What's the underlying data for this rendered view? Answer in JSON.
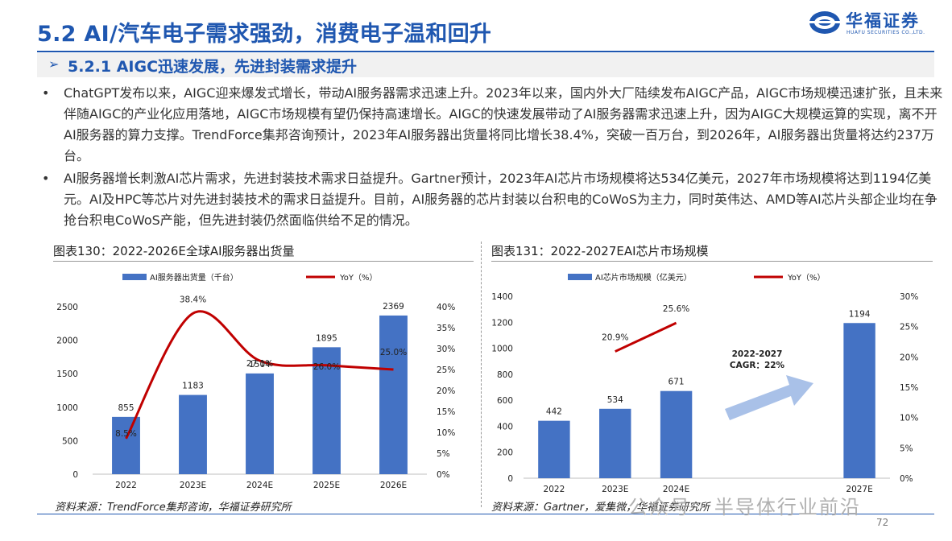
{
  "header": {
    "title": "5.2 AI/汽车电子需求强劲，消费电子温和回升",
    "logo_cn": "华福证券",
    "logo_en": "HUAFU SECURITIES CO.,LTD."
  },
  "section": {
    "arrow": "➢",
    "title": "5.2.1 AIGC迅速发展，先进封装需求提升"
  },
  "bullets": [
    {
      "mark": "•",
      "text": "ChatGPT发布以来，AIGC迎来爆发式增长，带动AI服务器需求迅速上升。2023年以来，国内外大厂陆续发布AIGC产品，AIGC市场规模迅速扩张，且未来伴随AIGC的产业化应用落地，AIGC市场规模有望仍保持高速增长。AIGC的快速发展带动了AI服务器需求迅速上升，因为AIGC大规模运算的实现，离不开AI服务器的算力支撑。TrendForce集邦咨询预计，2023年AI服务器出货量将同比增长38.4%，突破一百万台，到2026年，AI服务器出货量将达约237万台。"
    },
    {
      "mark": "•",
      "text": "AI服务器增长刺激AI芯片需求，先进封装技术需求日益提升。Gartner预计，2023年AI芯片市场规模将达534亿美元，2027年市场规模将达到1194亿美元。AI及HPC等芯片对先进封装技术的需求日益提升。目前，AI服务器的芯片封装以台积电的CoWoS为主力，同时英伟达、AMD等AI芯片头部企业均在争抢台积电CoWoS产能，但先进封装仍然面临供给不足的情况。"
    }
  ],
  "figure_left": {
    "title": "图表130：2022-2026E全球AI服务器出货量",
    "source": "资料来源：TrendForce集邦咨询，华福证券研究所"
  },
  "figure_right": {
    "title": "图表131：2022-2027EAI芯片市场规模",
    "source": "资料来源：Gartner，爱集微，华福证券研究所",
    "annotation_line1": "2022-2027",
    "annotation_line2": "CAGR：22%"
  },
  "footer": {
    "page": "72",
    "watermark": "公众号 · 半导体行业前沿"
  },
  "colors": {
    "brand_blue": "#1f57b0",
    "bar_blue": "#4472c4",
    "line_red": "#c00000",
    "arrow_light_blue": "#a9c1e8"
  },
  "chart_data": [
    {
      "type": "bar",
      "categories": [
        "2022",
        "2023E",
        "2024E",
        "2025E",
        "2026E"
      ],
      "series": [
        {
          "name": "AI服务器出货量（千台）",
          "type": "bar",
          "axis": "left",
          "values": [
            855,
            1183,
            1504,
            1895,
            2369
          ]
        },
        {
          "name": "YoY（%）",
          "type": "line",
          "axis": "right",
          "values": [
            8.5,
            38.4,
            27.1,
            26.0,
            25.0
          ]
        }
      ],
      "bar_labels": [
        "855",
        "1183",
        "1504",
        "1895",
        "2369"
      ],
      "line_labels": [
        "8.5%",
        "38.4%",
        "27.1%",
        "26.0%",
        "25.0%"
      ],
      "left_ticks": [
        "0",
        "500",
        "1000",
        "1500",
        "2000",
        "2500"
      ],
      "right_ticks": [
        "0%",
        "5%",
        "10%",
        "15%",
        "20%",
        "25%",
        "30%",
        "35%",
        "40%"
      ],
      "ylim_left": [
        0,
        2500
      ],
      "ylim_right": [
        0,
        40
      ],
      "legend": "top"
    },
    {
      "type": "bar",
      "categories": [
        "2022",
        "2023E",
        "2024E",
        "",
        "",
        "2027E"
      ],
      "series": [
        {
          "name": "AI芯片市场规模（亿美元）",
          "type": "bar",
          "axis": "left",
          "values": [
            442,
            534,
            671,
            null,
            null,
            1194
          ]
        },
        {
          "name": "YoY（%）",
          "type": "line",
          "axis": "right",
          "values": [
            null,
            20.9,
            25.6,
            null,
            null,
            null
          ]
        }
      ],
      "bar_labels": [
        "442",
        "534",
        "671",
        "",
        "",
        "1194"
      ],
      "line_labels": [
        "",
        "20.9%",
        "25.6%",
        "",
        "",
        ""
      ],
      "left_ticks": [
        "0",
        "200",
        "400",
        "600",
        "800",
        "1000",
        "1200",
        "1400"
      ],
      "right_ticks": [
        "0%",
        "5%",
        "10%",
        "15%",
        "20%",
        "25%",
        "30%"
      ],
      "ylim_left": [
        0,
        1400
      ],
      "ylim_right": [
        0,
        30
      ],
      "legend": "top"
    }
  ]
}
